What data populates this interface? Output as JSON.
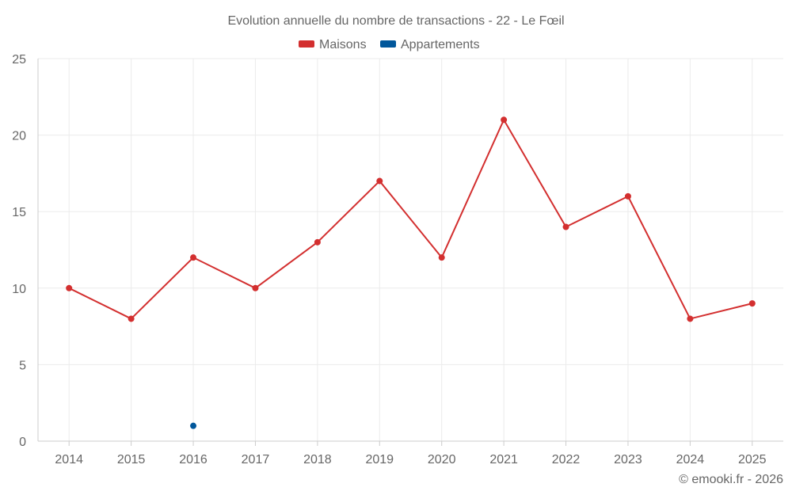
{
  "chart_data": {
    "type": "line",
    "title": "Evolution annuelle du nombre de transactions - 22 - Le Fœil",
    "categories": [
      "2014",
      "2015",
      "2016",
      "2017",
      "2018",
      "2019",
      "2020",
      "2021",
      "2022",
      "2023",
      "2024",
      "2025"
    ],
    "series": [
      {
        "name": "Maisons",
        "color": "#d32f2f",
        "values": [
          10,
          8,
          12,
          10,
          13,
          17,
          12,
          21,
          14,
          16,
          8,
          9
        ]
      },
      {
        "name": "Appartements",
        "color": "#01579b",
        "values": [
          null,
          null,
          1,
          null,
          null,
          null,
          null,
          null,
          null,
          null,
          null,
          null
        ]
      }
    ],
    "ylim": [
      0,
      25
    ],
    "yticks": [
      0,
      5,
      10,
      15,
      20,
      25
    ],
    "xlabel": "",
    "ylabel": "",
    "grid": true,
    "legend_position": "top-center"
  },
  "credit": "© emooki.fr - 2026"
}
